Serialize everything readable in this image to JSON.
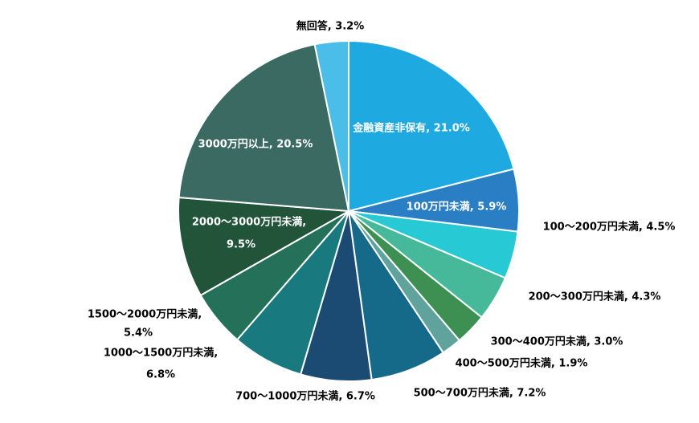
{
  "chart_data": {
    "type": "pie",
    "labels": [
      [
        "金融資産非保有, 21.0%"
      ],
      [
        "100万円未満, 5.9%"
      ],
      [
        "100～200万円未満, 4.5%"
      ],
      [
        "200～300万円未満, 4.3%"
      ],
      [
        "300～400万円未満, 3.0%"
      ],
      [
        "400～500万円未満, 1.9%"
      ],
      [
        "500～700万円未満, 7.2%"
      ],
      [
        "700～1000万円未満, 6.7%"
      ],
      [
        "1000～1500万円未満,",
        "6.8%"
      ],
      [
        "1500～2000万円未満,",
        "5.4%"
      ],
      [
        "2000～3000万円未満,",
        "9.5%"
      ],
      [
        "3000万円以上, 20.5%"
      ],
      [
        "無回答, 3.2%"
      ]
    ],
    "values": [
      21.0,
      5.9,
      4.5,
      4.3,
      3.0,
      1.9,
      7.2,
      6.7,
      6.8,
      5.4,
      9.5,
      20.5,
      3.2
    ],
    "colors": [
      "#1fa9e1",
      "#2a7fc4",
      "#27c9d5",
      "#45b99a",
      "#3e8f52",
      "#5fa39c",
      "#166a89",
      "#1b4a72",
      "#187a7e",
      "#257059",
      "#22543a",
      "#3a6a62",
      "#4bbde9"
    ]
  }
}
